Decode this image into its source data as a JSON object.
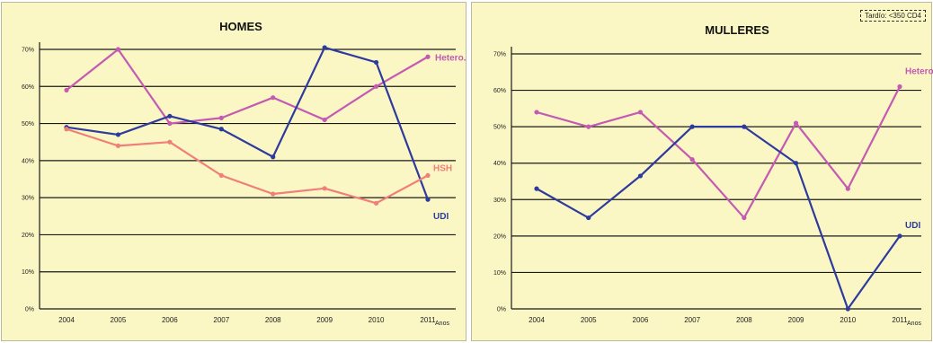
{
  "chart_data": [
    {
      "type": "line",
      "title": "HOMES",
      "categories": [
        "2004",
        "2005",
        "2006",
        "2007",
        "2008",
        "2009",
        "2010",
        "2011"
      ],
      "x_unit_label": "Anos",
      "ylim": [
        0,
        70
      ],
      "yticks": [
        "0%",
        "10%",
        "20%",
        "30%",
        "40%",
        "50%",
        "60%",
        "70%"
      ],
      "grid": true,
      "series": [
        {
          "name": "Hetero.",
          "color": "#c45ab3",
          "values": [
            59,
            70,
            50,
            51.5,
            57,
            51,
            60,
            68
          ]
        },
        {
          "name": "UDI",
          "color": "#2e3b9e",
          "values": [
            49,
            47,
            52,
            48.5,
            41,
            70.5,
            66.5,
            29.5
          ]
        },
        {
          "name": "HSH",
          "color": "#ef7f78",
          "values": [
            48.5,
            44,
            45,
            36,
            31,
            32.5,
            28.5,
            36
          ]
        }
      ]
    },
    {
      "type": "line",
      "title": "MULLERES",
      "note": "Tardío: <350 CD4",
      "categories": [
        "2004",
        "2005",
        "2006",
        "2007",
        "2008",
        "2009",
        "2010",
        "2011"
      ],
      "x_unit_label": "Anos",
      "ylim": [
        0,
        70
      ],
      "yticks": [
        "0%",
        "10%",
        "20%",
        "30%",
        "40%",
        "50%",
        "60%",
        "70%"
      ],
      "grid": true,
      "series": [
        {
          "name": "Hetero.",
          "color": "#c45ab3",
          "values": [
            54,
            50,
            54,
            41,
            25,
            51,
            33,
            61
          ]
        },
        {
          "name": "UDI",
          "color": "#2e3b9e",
          "values": [
            33,
            25,
            36.5,
            50,
            50,
            40,
            0,
            20
          ]
        }
      ]
    }
  ]
}
